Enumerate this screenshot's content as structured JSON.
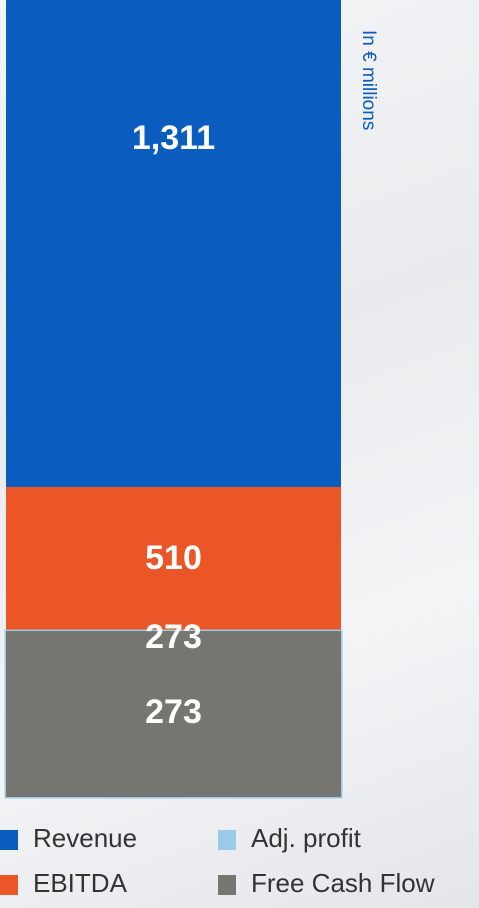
{
  "chart_data": {
    "type": "bar",
    "subtitle": "In € millions",
    "series": [
      {
        "name": "Revenue",
        "color": "#0a5cbf",
        "values": [
          1311
        ],
        "value_labels": [
          "1,311"
        ]
      },
      {
        "name": "EBITDA",
        "color": "#ea5625",
        "values": [
          510
        ],
        "value_labels": [
          "510"
        ]
      },
      {
        "name": "Adj. profit",
        "color": "#9ccbea",
        "values": [
          273
        ],
        "value_labels": [
          "273"
        ]
      },
      {
        "name": "Free Cash Flow",
        "color": "#767671",
        "values": [
          273
        ],
        "value_labels": [
          "273"
        ]
      }
    ]
  }
}
